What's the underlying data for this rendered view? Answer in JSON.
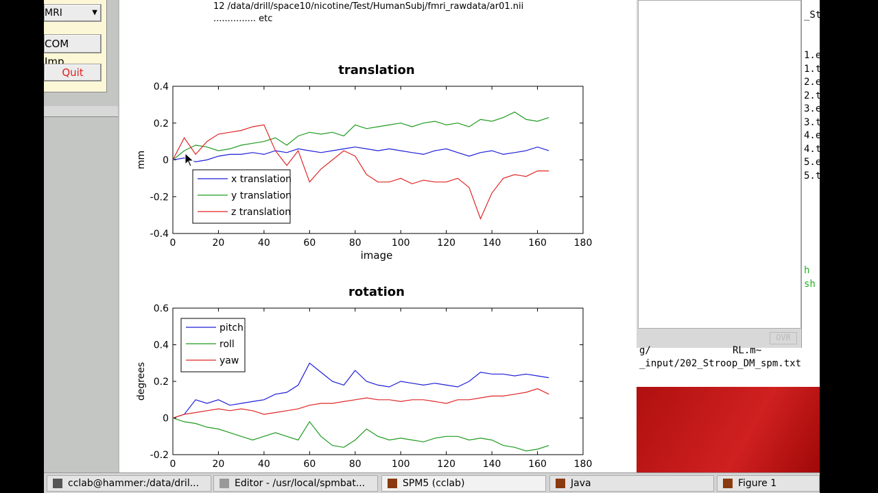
{
  "left_panel": {
    "dropdown": "MRI",
    "buttons": [
      "COM Imp...",
      "Quit"
    ]
  },
  "file_list": [
    "12  /data/drill/space10/nicotine/Test/HumanSubj/fmri_rawdata/ar01.nii",
    "............... etc"
  ],
  "chart_data": [
    {
      "type": "line",
      "title": "translation",
      "xlabel": "image",
      "ylabel": "mm",
      "x": [
        0,
        5,
        10,
        15,
        20,
        25,
        30,
        35,
        40,
        45,
        50,
        55,
        60,
        65,
        70,
        75,
        80,
        85,
        90,
        95,
        100,
        105,
        110,
        115,
        120,
        125,
        130,
        135,
        140,
        145,
        150,
        155,
        160,
        165
      ],
      "series": [
        {
          "name": "x translation",
          "color": "#1c1cd8",
          "values": [
            0,
            0.01,
            -0.01,
            0,
            0.02,
            0.03,
            0.03,
            0.04,
            0.03,
            0.05,
            0.04,
            0.06,
            0.05,
            0.04,
            0.05,
            0.06,
            0.07,
            0.06,
            0.05,
            0.06,
            0.05,
            0.04,
            0.03,
            0.05,
            0.06,
            0.04,
            0.02,
            0.04,
            0.05,
            0.03,
            0.04,
            0.05,
            0.07,
            0.05
          ]
        },
        {
          "name": "y translation",
          "color": "#1d9a1d",
          "values": [
            0,
            0.05,
            0.08,
            0.07,
            0.05,
            0.06,
            0.08,
            0.09,
            0.1,
            0.12,
            0.08,
            0.13,
            0.15,
            0.14,
            0.15,
            0.13,
            0.19,
            0.17,
            0.18,
            0.19,
            0.2,
            0.18,
            0.2,
            0.21,
            0.19,
            0.2,
            0.18,
            0.22,
            0.21,
            0.23,
            0.26,
            0.22,
            0.21,
            0.23
          ]
        },
        {
          "name": "z translation",
          "color": "#e02424",
          "values": [
            0,
            0.12,
            0.03,
            0.1,
            0.14,
            0.15,
            0.16,
            0.18,
            0.19,
            0.05,
            -0.03,
            0.05,
            -0.12,
            -0.05,
            0,
            0.05,
            0.02,
            -0.08,
            -0.12,
            -0.12,
            -0.1,
            -0.13,
            -0.11,
            -0.12,
            -0.12,
            -0.1,
            -0.15,
            -0.32,
            -0.18,
            -0.1,
            -0.08,
            -0.09,
            -0.06,
            -0.06
          ]
        }
      ],
      "xlim": [
        0,
        180
      ],
      "ylim": [
        -0.4,
        0.4
      ],
      "xticks": [
        0,
        20,
        40,
        60,
        80,
        100,
        120,
        140,
        160,
        180
      ],
      "yticks": [
        -0.4,
        -0.2,
        0,
        0.2,
        0.4
      ],
      "legend": "lower left"
    },
    {
      "type": "line",
      "title": "rotation",
      "ylabel": "degrees",
      "x": [
        0,
        5,
        10,
        15,
        20,
        25,
        30,
        35,
        40,
        45,
        50,
        55,
        60,
        65,
        70,
        75,
        80,
        85,
        90,
        95,
        100,
        105,
        110,
        115,
        120,
        125,
        130,
        135,
        140,
        145,
        150,
        155,
        160,
        165
      ],
      "series": [
        {
          "name": "pitch",
          "color": "#1c1cd8",
          "values": [
            0,
            0.02,
            0.1,
            0.08,
            0.1,
            0.07,
            0.08,
            0.09,
            0.1,
            0.13,
            0.14,
            0.18,
            0.3,
            0.25,
            0.2,
            0.18,
            0.26,
            0.2,
            0.18,
            0.17,
            0.2,
            0.19,
            0.18,
            0.19,
            0.18,
            0.17,
            0.2,
            0.25,
            0.24,
            0.24,
            0.23,
            0.24,
            0.23,
            0.22
          ]
        },
        {
          "name": "roll",
          "color": "#1d9a1d",
          "values": [
            0,
            -0.02,
            -0.03,
            -0.05,
            -0.06,
            -0.08,
            -0.1,
            -0.12,
            -0.1,
            -0.08,
            -0.1,
            -0.12,
            -0.02,
            -0.1,
            -0.15,
            -0.16,
            -0.12,
            -0.06,
            -0.1,
            -0.12,
            -0.11,
            -0.12,
            -0.13,
            -0.11,
            -0.1,
            -0.1,
            -0.12,
            -0.11,
            -0.12,
            -0.15,
            -0.16,
            -0.18,
            -0.17,
            -0.15
          ]
        },
        {
          "name": "yaw",
          "color": "#e02424",
          "values": [
            0,
            0.02,
            0.03,
            0.04,
            0.05,
            0.04,
            0.05,
            0.04,
            0.02,
            0.03,
            0.04,
            0.05,
            0.07,
            0.08,
            0.08,
            0.09,
            0.1,
            0.11,
            0.1,
            0.1,
            0.09,
            0.1,
            0.1,
            0.09,
            0.08,
            0.1,
            0.1,
            0.11,
            0.12,
            0.12,
            0.13,
            0.14,
            0.16,
            0.13
          ]
        }
      ],
      "xlim": [
        0,
        180
      ],
      "ylim": [
        -0.2,
        0.6
      ],
      "xticks": [
        0,
        20,
        40,
        60,
        80,
        100,
        120,
        140,
        160,
        180
      ],
      "yticks": [
        -0.2,
        0,
        0.2,
        0.4,
        0.6
      ],
      "legend": "upper left"
    }
  ],
  "editor": {
    "header": "_St",
    "lines": [
      "1.e",
      "1.t",
      "2.e",
      "2.t",
      "3.e",
      "3.t",
      "4.e",
      "4.t",
      "5.e",
      "5.t"
    ],
    "green_lines": [
      "h",
      "sh"
    ],
    "status": "OVR"
  },
  "terminal": {
    "path": "g/",
    "file": "RL.m~",
    "line": "_input/202_Stroop_DM_spm.txt"
  },
  "taskbar": [
    "cclab@hammer:/data/dril...",
    "Editor - /usr/local/spmbat...",
    "SPM5 (cclab)",
    "Java",
    "Figure 1"
  ]
}
